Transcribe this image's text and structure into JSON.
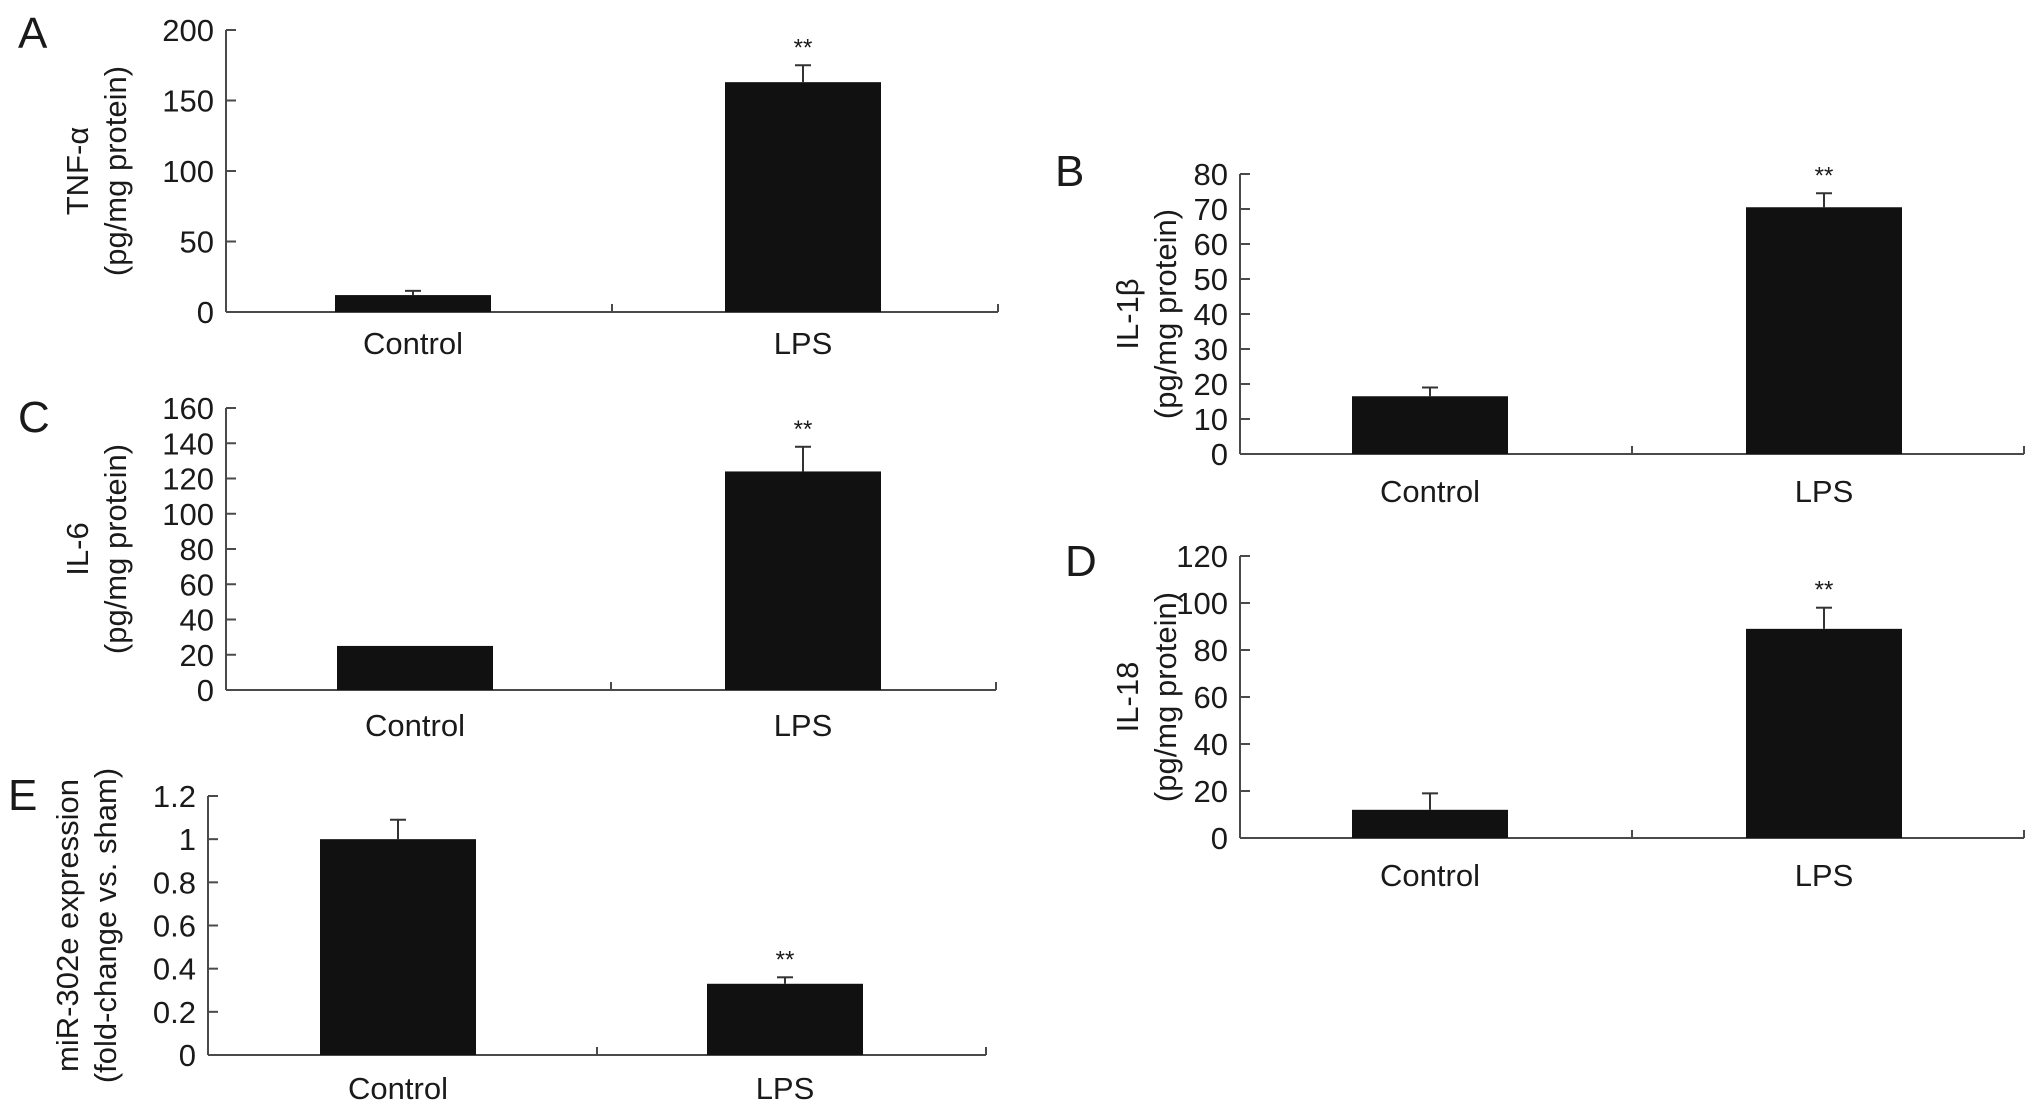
{
  "chart_data": [
    {
      "type": "bar",
      "panel": "A",
      "categories": [
        "Control",
        "LPS"
      ],
      "values": [
        12,
        163
      ],
      "errors": [
        3,
        12
      ],
      "significance": [
        "",
        "**"
      ],
      "ylabel": "TNF-α",
      "ylabel_unit": "(pg/mg protein)",
      "ylim": [
        0,
        200
      ],
      "yticks": [
        "0",
        "50",
        "100",
        "150",
        "200"
      ]
    },
    {
      "type": "bar",
      "panel": "B",
      "categories": [
        "Control",
        "LPS"
      ],
      "values": [
        16.5,
        70.5
      ],
      "errors": [
        2.5,
        4
      ],
      "significance": [
        "",
        "**"
      ],
      "ylabel": "IL-1β",
      "ylabel_unit": "(pg/mg protein)",
      "ylim": [
        0,
        80
      ],
      "yticks": [
        "0",
        "10",
        "20",
        "30",
        "40",
        "50",
        "60",
        "70",
        "80"
      ]
    },
    {
      "type": "bar",
      "panel": "C",
      "categories": [
        "Control",
        "LPS"
      ],
      "values": [
        25,
        124
      ],
      "errors": [
        0,
        14
      ],
      "significance": [
        "",
        "**"
      ],
      "ylabel": "IL-6",
      "ylabel_unit": "(pg/mg protein)",
      "ylim": [
        0,
        160
      ],
      "yticks": [
        "0",
        "20",
        "40",
        "60",
        "80",
        "100",
        "120",
        "140",
        "160"
      ]
    },
    {
      "type": "bar",
      "panel": "D",
      "categories": [
        "Control",
        "LPS"
      ],
      "values": [
        12,
        89
      ],
      "errors": [
        7,
        9
      ],
      "significance": [
        "",
        "**"
      ],
      "ylabel": "IL-18",
      "ylabel_unit": "(pg/mg protein)",
      "ylim": [
        0,
        120
      ],
      "yticks": [
        "0",
        "20",
        "40",
        "60",
        "80",
        "100",
        "120"
      ]
    },
    {
      "type": "bar",
      "panel": "E",
      "categories": [
        "Control",
        "LPS"
      ],
      "values": [
        1.0,
        0.33
      ],
      "errors": [
        0.09,
        0.03
      ],
      "significance": [
        "",
        "**"
      ],
      "ylabel": "miR-302e expression",
      "ylabel_unit": "(fold-change vs. sham)",
      "ylim": [
        0,
        1.2
      ],
      "yticks": [
        "0",
        "0.2",
        "0.4",
        "0.6",
        "0.8",
        "1",
        "1.2"
      ]
    }
  ]
}
